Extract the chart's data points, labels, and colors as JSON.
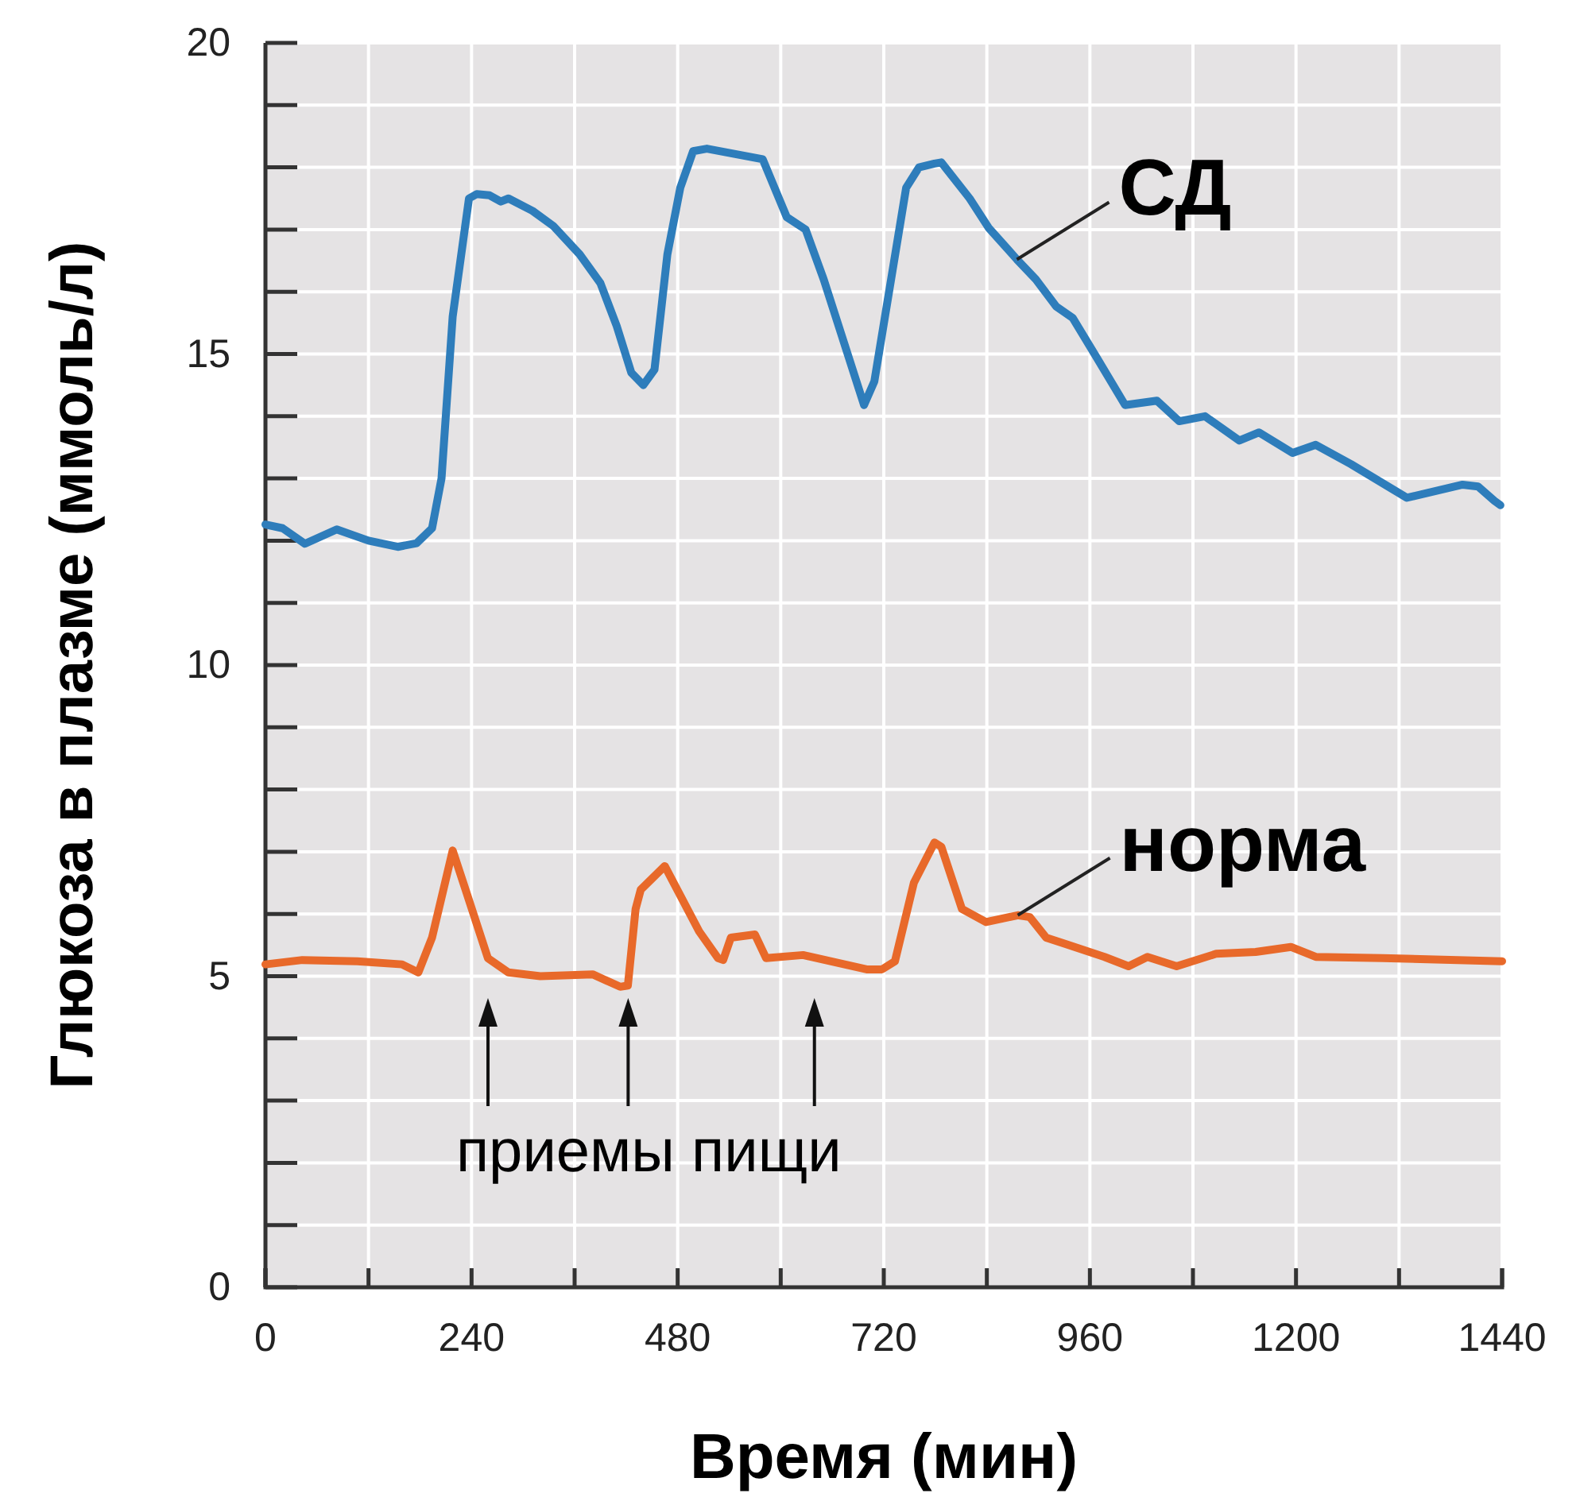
{
  "chart_data": {
    "type": "line",
    "xlabel": "Время (мин)",
    "ylabel": "Глюкоза в плазме (ммоль/л)",
    "xlim": [
      0,
      1440
    ],
    "ylim": [
      0,
      20
    ],
    "xticks": [
      0,
      {
        "value": 120,
        "label": null
      },
      240,
      {
        "value": 360,
        "label": null
      },
      480,
      {
        "value": 600,
        "label": null
      },
      720,
      {
        "value": 840,
        "label": null
      },
      960,
      {
        "value": 1080,
        "label": null
      },
      1200,
      {
        "value": 1320,
        "label": null
      },
      1440
    ],
    "yticks": [
      0,
      {
        "value": 1,
        "label": null
      },
      {
        "value": 2,
        "label": null
      },
      {
        "value": 3,
        "label": null
      },
      {
        "value": 4,
        "label": null
      },
      5,
      {
        "value": 6,
        "label": null
      },
      {
        "value": 7,
        "label": null
      },
      {
        "value": 8,
        "label": null
      },
      {
        "value": 9,
        "label": null
      },
      10,
      {
        "value": 11,
        "label": null
      },
      {
        "value": 12,
        "label": null
      },
      {
        "value": 13,
        "label": null
      },
      {
        "value": 14,
        "label": null
      },
      15,
      {
        "value": 16,
        "label": null
      },
      {
        "value": 17,
        "label": null
      },
      {
        "value": 18,
        "label": null
      },
      {
        "value": 19,
        "label": null
      },
      20
    ],
    "grid": true,
    "line_style": "solid",
    "marker": "none",
    "annotations": [
      "приемы пищи"
    ],
    "series": [
      {
        "name": "СД",
        "color": "#2e7dbb",
        "x": [
          0,
          20,
          46,
          83,
          120,
          154,
          176,
          194,
          205,
          218,
          237,
          246,
          261,
          274,
          283,
          311,
          335,
          366,
          390,
          409,
          426,
          440,
          453,
          468,
          483,
          498,
          514,
          579,
          607,
          629,
          650,
          697,
          709,
          746,
          761,
          779,
          787,
          820,
          842,
          875,
          897,
          921,
          940,
          968,
          1001,
          1038,
          1064,
          1094,
          1134,
          1157,
          1196,
          1223,
          1264,
          1329,
          1394,
          1412,
          1431,
          1438
        ],
        "values": [
          12.26,
          12.2,
          11.95,
          12.18,
          12.0,
          11.9,
          11.96,
          12.2,
          13.0,
          15.6,
          17.5,
          17.57,
          17.55,
          17.45,
          17.5,
          17.3,
          17.06,
          16.6,
          16.14,
          15.45,
          14.7,
          14.5,
          14.75,
          16.6,
          17.67,
          18.26,
          18.3,
          18.13,
          17.2,
          17.0,
          16.2,
          14.18,
          14.56,
          17.67,
          18.0,
          18.06,
          18.08,
          17.5,
          17.03,
          16.52,
          16.2,
          15.76,
          15.58,
          14.94,
          14.18,
          14.25,
          13.92,
          14.0,
          13.61,
          13.74,
          13.41,
          13.54,
          13.23,
          12.69,
          12.9,
          12.87,
          12.64,
          12.57
        ]
      },
      {
        "name": "норма",
        "color": "#e8692a",
        "x": [
          0,
          43,
          107,
          159,
          178,
          194,
          218,
          233,
          259,
          283,
          320,
          381,
          413,
          422,
          431,
          437,
          465,
          505,
          527,
          533,
          542,
          570,
          583,
          626,
          700,
          718,
          733,
          755,
          779,
          787,
          811,
          839,
          876,
          890,
          909,
          931,
          977,
          1005,
          1027,
          1061,
          1107,
          1153,
          1194,
          1223,
          1301,
          1440
        ],
        "values": [
          5.19,
          5.26,
          5.24,
          5.19,
          5.06,
          5.62,
          7.02,
          6.39,
          5.29,
          5.06,
          5.0,
          5.03,
          4.83,
          4.85,
          6.08,
          6.39,
          6.77,
          5.72,
          5.29,
          5.26,
          5.62,
          5.67,
          5.29,
          5.34,
          5.11,
          5.11,
          5.24,
          6.5,
          7.15,
          7.08,
          6.08,
          5.87,
          5.98,
          5.95,
          5.62,
          5.52,
          5.31,
          5.16,
          5.31,
          5.16,
          5.36,
          5.39,
          5.47,
          5.31,
          5.29,
          5.24
        ]
      }
    ]
  }
}
